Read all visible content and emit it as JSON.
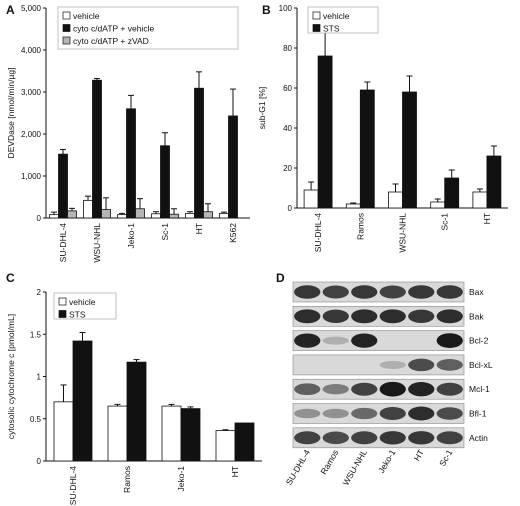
{
  "chart_data": [
    {
      "panel": "A",
      "type": "bar",
      "ylabel": "DEVDase [nmol/min/µg]",
      "ylim": [
        0,
        5000
      ],
      "yticks": [
        "0",
        "1,000",
        "2,000",
        "3,000",
        "4,000",
        "5,000"
      ],
      "ytick_values": [
        0,
        1000,
        2000,
        3000,
        4000,
        5000
      ],
      "categories": [
        "SU-DHL-4",
        "WSU-NHL",
        "Jeko-1",
        "Sc-1",
        "HT",
        "K562"
      ],
      "series": [
        {
          "name": "vehicle",
          "color": "#ffffff",
          "values": [
            80,
            420,
            80,
            100,
            110,
            110
          ],
          "errors": [
            60,
            100,
            30,
            50,
            40,
            30
          ]
        },
        {
          "name": "cyto c/dATP + vehicle",
          "color": "#111111",
          "values": [
            1520,
            3280,
            2600,
            1720,
            3090,
            2430
          ],
          "errors": [
            110,
            40,
            320,
            310,
            390,
            640
          ]
        },
        {
          "name": "cyto c/dATP + zVAD",
          "color": "#b5b5b5",
          "values": [
            170,
            200,
            220,
            90,
            150,
            0
          ],
          "errors": [
            60,
            280,
            240,
            130,
            190,
            0
          ]
        }
      ]
    },
    {
      "panel": "B",
      "type": "bar",
      "ylabel": "sub-G1 [%]",
      "ylim": [
        0,
        100
      ],
      "yticks": [
        "0",
        "20",
        "40",
        "60",
        "80",
        "100"
      ],
      "ytick_values": [
        0,
        20,
        40,
        60,
        80,
        100
      ],
      "categories": [
        "SU-DHL-4",
        "Ramos",
        "WSU-NHL",
        "Sc-1",
        "HT"
      ],
      "series": [
        {
          "name": "vehicle",
          "color": "#ffffff",
          "values": [
            9,
            2,
            8,
            3,
            8
          ],
          "errors": [
            4,
            0.5,
            4,
            1.5,
            1.5
          ]
        },
        {
          "name": "STS",
          "color": "#111111",
          "values": [
            76,
            59,
            58,
            15,
            26
          ],
          "errors": [
            12,
            4,
            8,
            4,
            5
          ]
        }
      ]
    },
    {
      "panel": "C",
      "type": "bar",
      "ylabel": "cytosolic cytochrome c [pmol/mL]",
      "ylim": [
        0,
        2
      ],
      "yticks": [
        "0",
        "0.5",
        "1",
        "1.5",
        "2"
      ],
      "ytick_values": [
        0,
        0.5,
        1,
        1.5,
        2
      ],
      "categories": [
        "SU-DHL-4",
        "Ramos",
        "Jeko-1",
        "HT"
      ],
      "series": [
        {
          "name": "vehicle",
          "color": "#ffffff",
          "values": [
            0.7,
            0.65,
            0.65,
            0.36
          ],
          "errors": [
            0.2,
            0.02,
            0.02,
            0.01
          ]
        },
        {
          "name": "STS",
          "color": "#111111",
          "values": [
            1.42,
            1.17,
            0.62,
            0.45
          ],
          "errors": [
            0.1,
            0.03,
            0.02,
            0
          ]
        }
      ]
    },
    {
      "panel": "D",
      "type": "table",
      "lanes": [
        "SU-DHL-4",
        "Ramos",
        "WSU-NHL",
        "Jeko-1",
        "HT",
        "Sc-1"
      ],
      "rows": [
        {
          "label": "Bax",
          "intensity": [
            0.8,
            0.75,
            0.8,
            0.75,
            0.8,
            0.8
          ]
        },
        {
          "label": "Bak",
          "intensity": [
            0.85,
            0.8,
            0.85,
            0.85,
            0.8,
            0.85
          ]
        },
        {
          "label": "Bcl-2",
          "intensity": [
            0.9,
            0.2,
            0.9,
            0.0,
            0.0,
            0.95
          ]
        },
        {
          "label": "Bcl-xL",
          "intensity": [
            0.0,
            0.0,
            0.0,
            0.2,
            0.7,
            0.6
          ]
        },
        {
          "label": "Mcl-1",
          "intensity": [
            0.6,
            0.45,
            0.75,
            0.95,
            0.9,
            0.75
          ]
        },
        {
          "label": "Bfl-1",
          "intensity": [
            0.35,
            0.35,
            0.55,
            0.75,
            0.85,
            0.7
          ]
        },
        {
          "label": "Actin",
          "intensity": [
            0.75,
            0.7,
            0.75,
            0.8,
            0.8,
            0.75
          ]
        }
      ]
    }
  ],
  "panels": {
    "a": "A",
    "b": "B",
    "c": "C",
    "d": "D"
  }
}
